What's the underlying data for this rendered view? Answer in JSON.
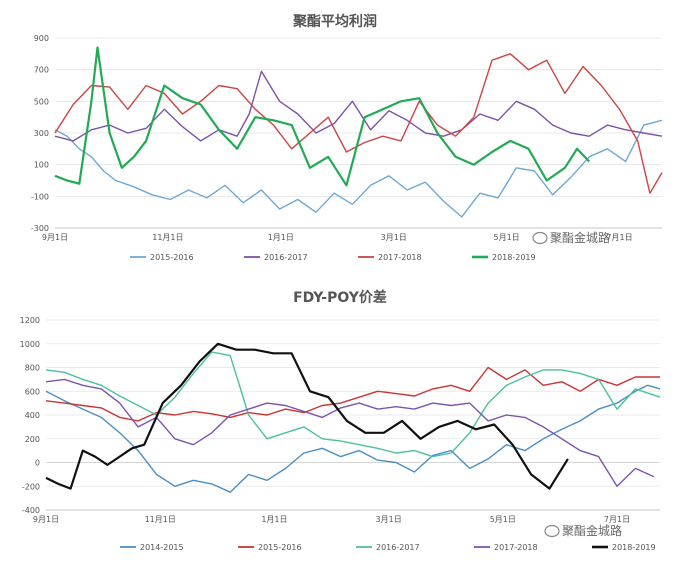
{
  "watermark": "聚酯金城路",
  "watermark_icon": "wechat-icon",
  "chart_data": [
    {
      "type": "line",
      "title": "聚酯平均利润",
      "ylim": [
        -300,
        900
      ],
      "yticks": [
        900,
        700,
        500,
        300,
        100,
        -100,
        -300
      ],
      "xticks": [
        "9月1日",
        "11月1日",
        "1月1日",
        "3月1日",
        "5月1日",
        "7月1日"
      ],
      "legend_position": "bottom",
      "grid": true,
      "series": [
        {
          "name": "2015-2016",
          "color": "#6fa8d6",
          "width": 1.4,
          "x": [
            0.0,
            0.02,
            0.04,
            0.06,
            0.08,
            0.1,
            0.13,
            0.16,
            0.19,
            0.22,
            0.25,
            0.28,
            0.31,
            0.34,
            0.37,
            0.4,
            0.43,
            0.46,
            0.49,
            0.52,
            0.55,
            0.58,
            0.61,
            0.64,
            0.67,
            0.7,
            0.73,
            0.76,
            0.79,
            0.82,
            0.85,
            0.88,
            0.91,
            0.94,
            0.97,
            1.0
          ],
          "values": [
            320,
            280,
            200,
            150,
            60,
            0,
            -40,
            -90,
            -120,
            -60,
            -110,
            -30,
            -140,
            -60,
            -180,
            -120,
            -200,
            -80,
            -150,
            -30,
            30,
            -60,
            -10,
            -130,
            -230,
            -80,
            -110,
            80,
            60,
            -90,
            20,
            150,
            200,
            120,
            350,
            380
          ]
        },
        {
          "name": "2016-2017",
          "color": "#7d52a8",
          "width": 1.4,
          "x": [
            0.0,
            0.03,
            0.06,
            0.09,
            0.12,
            0.15,
            0.18,
            0.21,
            0.24,
            0.27,
            0.3,
            0.32,
            0.34,
            0.37,
            0.4,
            0.43,
            0.46,
            0.49,
            0.52,
            0.55,
            0.58,
            0.61,
            0.64,
            0.67,
            0.7,
            0.73,
            0.76,
            0.79,
            0.82,
            0.85,
            0.88,
            0.91,
            0.94,
            0.97,
            1.0
          ],
          "values": [
            280,
            250,
            320,
            350,
            300,
            330,
            450,
            340,
            250,
            320,
            280,
            420,
            690,
            500,
            420,
            300,
            360,
            500,
            320,
            440,
            380,
            300,
            280,
            320,
            420,
            380,
            500,
            450,
            350,
            300,
            280,
            350,
            320,
            300,
            280
          ]
        },
        {
          "name": "2017-2018",
          "color": "#cc4444",
          "width": 1.4,
          "x": [
            0.0,
            0.03,
            0.06,
            0.09,
            0.12,
            0.15,
            0.18,
            0.21,
            0.24,
            0.27,
            0.3,
            0.33,
            0.36,
            0.39,
            0.42,
            0.45,
            0.48,
            0.51,
            0.54,
            0.57,
            0.6,
            0.63,
            0.66,
            0.69,
            0.72,
            0.75,
            0.78,
            0.81,
            0.84,
            0.87,
            0.9,
            0.93,
            0.96,
            0.98,
            1.0
          ],
          "values": [
            300,
            480,
            600,
            590,
            450,
            600,
            550,
            420,
            500,
            600,
            580,
            450,
            350,
            200,
            300,
            400,
            180,
            240,
            280,
            250,
            500,
            350,
            280,
            400,
            760,
            800,
            700,
            760,
            550,
            720,
            600,
            450,
            250,
            -80,
            50
          ]
        },
        {
          "name": "2018-2019",
          "color": "#22aa55",
          "width": 2.2,
          "x": [
            0.0,
            0.02,
            0.04,
            0.06,
            0.07,
            0.09,
            0.11,
            0.13,
            0.15,
            0.18,
            0.21,
            0.24,
            0.27,
            0.3,
            0.33,
            0.36,
            0.39,
            0.42,
            0.45,
            0.48,
            0.51,
            0.54,
            0.57,
            0.6,
            0.63,
            0.66,
            0.69,
            0.72,
            0.75,
            0.78,
            0.81,
            0.84,
            0.86,
            0.88
          ],
          "values": [
            30,
            0,
            -20,
            500,
            840,
            300,
            80,
            150,
            250,
            600,
            520,
            480,
            320,
            200,
            400,
            380,
            350,
            80,
            150,
            -30,
            400,
            450,
            500,
            520,
            300,
            150,
            100,
            180,
            250,
            200,
            0,
            80,
            200,
            120
          ]
        }
      ]
    },
    {
      "type": "line",
      "title": "FDY-POY价差",
      "ylim": [
        -400,
        1200
      ],
      "yticks": [
        1200,
        1000,
        800,
        600,
        400,
        200,
        0,
        -200,
        -400
      ],
      "xticks": [
        "9月1日",
        "11月1日",
        "1月1日",
        "3月1日",
        "5月1日",
        "7月1日"
      ],
      "legend_position": "bottom",
      "grid": true,
      "series": [
        {
          "name": "2014-2015",
          "color": "#4a8fc6",
          "width": 1.4,
          "x": [
            0.0,
            0.03,
            0.06,
            0.09,
            0.12,
            0.15,
            0.18,
            0.21,
            0.24,
            0.27,
            0.3,
            0.33,
            0.36,
            0.39,
            0.42,
            0.45,
            0.48,
            0.51,
            0.54,
            0.57,
            0.6,
            0.63,
            0.66,
            0.69,
            0.72,
            0.75,
            0.78,
            0.81,
            0.84,
            0.87,
            0.9,
            0.93,
            0.96,
            0.98,
            1.0
          ],
          "values": [
            600,
            520,
            450,
            380,
            250,
            100,
            -100,
            -200,
            -150,
            -180,
            -250,
            -100,
            -150,
            -50,
            80,
            120,
            50,
            100,
            20,
            0,
            -80,
            60,
            100,
            -50,
            30,
            150,
            100,
            200,
            280,
            350,
            450,
            500,
            600,
            650,
            620
          ]
        },
        {
          "name": "2015-2016",
          "color": "#cc3333",
          "width": 1.4,
          "x": [
            0.0,
            0.03,
            0.06,
            0.09,
            0.12,
            0.15,
            0.18,
            0.21,
            0.24,
            0.27,
            0.3,
            0.33,
            0.36,
            0.39,
            0.42,
            0.45,
            0.48,
            0.51,
            0.54,
            0.57,
            0.6,
            0.63,
            0.66,
            0.69,
            0.72,
            0.75,
            0.78,
            0.81,
            0.84,
            0.87,
            0.9,
            0.93,
            0.96,
            1.0
          ],
          "values": [
            520,
            500,
            480,
            460,
            380,
            350,
            420,
            400,
            430,
            410,
            380,
            420,
            400,
            450,
            420,
            480,
            500,
            550,
            600,
            580,
            560,
            620,
            650,
            600,
            800,
            700,
            780,
            650,
            680,
            600,
            700,
            650,
            720,
            720
          ]
        },
        {
          "name": "2016-2017",
          "color": "#4dbfa0",
          "width": 1.4,
          "x": [
            0.0,
            0.03,
            0.06,
            0.09,
            0.12,
            0.15,
            0.18,
            0.21,
            0.24,
            0.27,
            0.3,
            0.33,
            0.36,
            0.39,
            0.42,
            0.45,
            0.48,
            0.51,
            0.54,
            0.57,
            0.6,
            0.63,
            0.66,
            0.69,
            0.72,
            0.75,
            0.78,
            0.81,
            0.84,
            0.87,
            0.9,
            0.93,
            0.96,
            1.0
          ],
          "values": [
            780,
            760,
            700,
            650,
            560,
            480,
            400,
            550,
            750,
            930,
            900,
            400,
            200,
            250,
            300,
            200,
            180,
            150,
            120,
            80,
            100,
            50,
            80,
            250,
            500,
            650,
            720,
            780,
            780,
            750,
            700,
            450,
            620,
            550
          ]
        },
        {
          "name": "2017-2018",
          "color": "#7a55b0",
          "width": 1.4,
          "x": [
            0.0,
            0.03,
            0.06,
            0.09,
            0.12,
            0.15,
            0.18,
            0.21,
            0.24,
            0.27,
            0.3,
            0.33,
            0.36,
            0.39,
            0.42,
            0.45,
            0.48,
            0.51,
            0.54,
            0.57,
            0.6,
            0.63,
            0.66,
            0.69,
            0.72,
            0.75,
            0.78,
            0.81,
            0.84,
            0.87,
            0.9,
            0.93,
            0.96,
            0.99
          ],
          "values": [
            680,
            700,
            650,
            620,
            500,
            300,
            380,
            200,
            150,
            250,
            400,
            450,
            500,
            480,
            430,
            380,
            460,
            500,
            450,
            470,
            450,
            500,
            480,
            500,
            350,
            400,
            380,
            300,
            200,
            100,
            50,
            -200,
            -50,
            -120
          ]
        },
        {
          "name": "2018-2019",
          "color": "#111111",
          "width": 2.2,
          "x": [
            0.0,
            0.02,
            0.04,
            0.06,
            0.08,
            0.1,
            0.12,
            0.14,
            0.16,
            0.19,
            0.22,
            0.25,
            0.28,
            0.31,
            0.34,
            0.37,
            0.4,
            0.43,
            0.46,
            0.49,
            0.52,
            0.55,
            0.58,
            0.61,
            0.64,
            0.67,
            0.7,
            0.73,
            0.76,
            0.79,
            0.82,
            0.85
          ],
          "values": [
            -130,
            -180,
            -220,
            100,
            50,
            -20,
            50,
            120,
            150,
            500,
            650,
            850,
            1000,
            950,
            950,
            920,
            920,
            600,
            550,
            350,
            250,
            250,
            350,
            200,
            300,
            350,
            280,
            320,
            150,
            -100,
            -220,
            30
          ]
        }
      ]
    }
  ]
}
